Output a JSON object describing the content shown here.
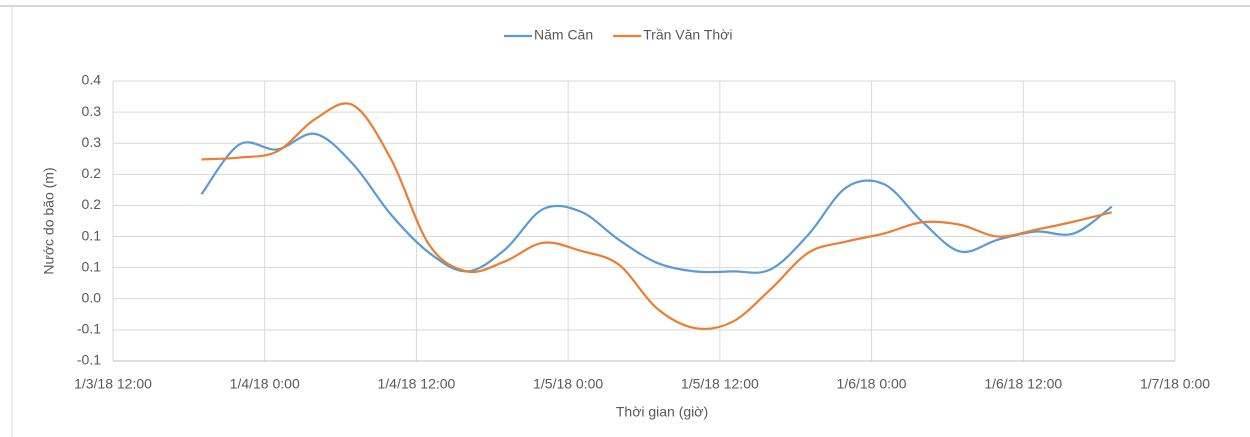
{
  "chart_data": {
    "type": "line",
    "x": [
      "1/3/18 19:00",
      "1/3/18 22:00",
      "1/4/18 1:00",
      "1/4/18 4:00",
      "1/4/18 7:00",
      "1/4/18 10:00",
      "1/4/18 13:00",
      "1/4/18 16:00",
      "1/4/18 19:00",
      "1/4/18 22:00",
      "1/5/18 1:00",
      "1/5/18 4:00",
      "1/5/18 7:00",
      "1/5/18 10:00",
      "1/5/18 13:00",
      "1/5/18 16:00",
      "1/5/18 19:00",
      "1/5/18 22:00",
      "1/6/18 1:00",
      "1/6/18 4:00",
      "1/6/18 7:00",
      "1/6/18 10:00",
      "1/6/18 13:00",
      "1/6/18 16:00",
      "1/6/18 19:00"
    ],
    "series": [
      {
        "name": "Năm Căn",
        "color": "#5b9bd5",
        "values": [
          0.168,
          0.248,
          0.24,
          0.265,
          0.216,
          0.135,
          0.074,
          0.044,
          0.079,
          0.144,
          0.14,
          0.095,
          0.058,
          0.044,
          0.044,
          0.047,
          0.103,
          0.179,
          0.184,
          0.124,
          0.076,
          0.095,
          0.108,
          0.105,
          0.148
        ]
      },
      {
        "name": "Trần Văn Thời",
        "color": "#ed7d31",
        "values": [
          0.224,
          0.227,
          0.237,
          0.289,
          0.311,
          0.224,
          0.087,
          0.044,
          0.06,
          0.09,
          0.077,
          0.055,
          -0.015,
          -0.047,
          -0.037,
          0.015,
          0.074,
          0.092,
          0.105,
          0.123,
          0.119,
          0.1,
          0.111,
          0.124,
          0.139
        ]
      }
    ],
    "xlabel": "Thời gian (giờ)",
    "ylabel": "Nước do bão (m)",
    "xlim": [
      "1/3/18 12:00",
      "1/7/18 0:00"
    ],
    "xticks": [
      "1/3/18 12:00",
      "1/4/18 0:00",
      "1/4/18 12:00",
      "1/5/18 0:00",
      "1/5/18 12:00",
      "1/6/18 0:00",
      "1/6/18 12:00",
      "1/7/18 0:00"
    ],
    "ylim": [
      -0.1,
      0.35
    ],
    "yticks": [
      {
        "value": -0.1,
        "label": "-0.1"
      },
      {
        "value": -0.05,
        "label": "-0.1"
      },
      {
        "value": 0,
        "label": "0.0"
      },
      {
        "value": 0.05,
        "label": "0.1"
      },
      {
        "value": 0.1,
        "label": "0.1"
      },
      {
        "value": 0.15,
        "label": "0.2"
      },
      {
        "value": 0.2,
        "label": "0.2"
      },
      {
        "value": 0.25,
        "label": "0.3"
      },
      {
        "value": 0.3,
        "label": "0.3"
      },
      {
        "value": 0.35,
        "label": "0.4"
      }
    ],
    "grid": true,
    "legend": "top"
  }
}
